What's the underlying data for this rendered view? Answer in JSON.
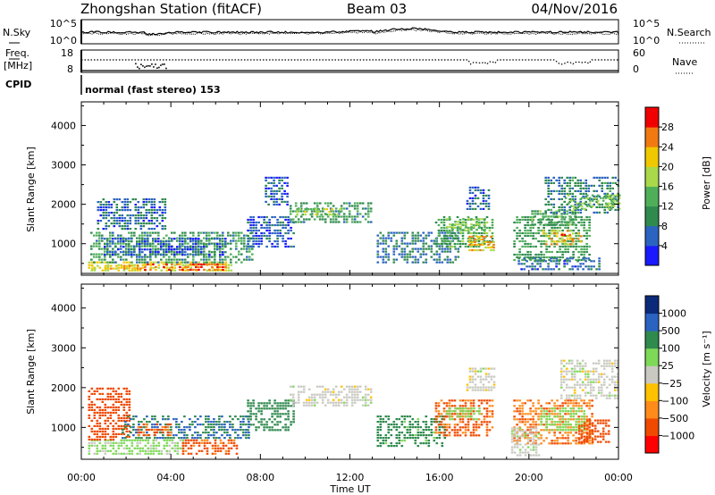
{
  "header": {
    "station": "Zhongshan Station (fitACF)",
    "beam": "Beam 03",
    "date": "04/Nov/2016"
  },
  "noise_panel": {
    "left_label": "N.Sky",
    "right_label": "N.Search",
    "left_ticks": [
      "10^5",
      "10^0"
    ],
    "right_ticks": [
      "10^5",
      "10^0"
    ]
  },
  "freq_panel": {
    "left_label_1": "Freq.",
    "left_label_2": "[MHz]",
    "right_label": "Nave",
    "left_ticks": [
      "18",
      "8"
    ],
    "right_ticks": [
      "60",
      "0"
    ]
  },
  "cpid": {
    "label": "CPID",
    "text": "normal (fast stereo) 153"
  },
  "colors": {
    "power_scale": [
      "#1a1aff",
      "#2b63c0",
      "#2f8a4e",
      "#4faf59",
      "#a9d84a",
      "#f0c800",
      "#f07a10",
      "#f00000"
    ],
    "velocity_scale": [
      "#ff0000",
      "#f04a00",
      "#ff8c1a",
      "#ffc200",
      "#c9c9c2",
      "#7ed957",
      "#2f8a4e",
      "#2b63c0",
      "#0b2a7a"
    ]
  },
  "chart_data": [
    {
      "type": "heatmap",
      "title": "",
      "xlabel": "",
      "ylabel": "Slant Range [km]",
      "x_ticks": [
        "00:00",
        "04:00",
        "08:00",
        "12:00",
        "16:00",
        "20:00",
        "00:00"
      ],
      "y_ticks": [
        "1000",
        "2000",
        "3000",
        "4000"
      ],
      "xlim": [
        0,
        24
      ],
      "ylim": [
        200,
        4600
      ],
      "colorbar": {
        "label": "Power [dB]",
        "ticks": [
          "28",
          "24",
          "20",
          "16",
          "12",
          "8",
          "4"
        ],
        "range": [
          0,
          32
        ]
      },
      "patches": [
        {
          "t0": 0.3,
          "t1": 6.7,
          "r0": 300,
          "r1": 550,
          "value": 20
        },
        {
          "t0": 2.8,
          "t1": 6.4,
          "r0": 330,
          "r1": 500,
          "value": 27
        },
        {
          "t0": 0.2,
          "t1": 2.6,
          "r0": 340,
          "r1": 460,
          "value": 23
        },
        {
          "t0": 0.4,
          "t1": 7.6,
          "r0": 500,
          "r1": 1300,
          "value": 11
        },
        {
          "t0": 1.0,
          "t1": 6.5,
          "r0": 700,
          "r1": 1150,
          "value": 6
        },
        {
          "t0": 0.7,
          "t1": 3.7,
          "r0": 1350,
          "r1": 2150,
          "value": 7
        },
        {
          "t0": 7.4,
          "t1": 9.5,
          "r0": 900,
          "r1": 1700,
          "value": 6
        },
        {
          "t0": 9.3,
          "t1": 13.0,
          "r0": 1550,
          "r1": 2050,
          "value": 11
        },
        {
          "t0": 9.6,
          "t1": 11.6,
          "r0": 1700,
          "r1": 1900,
          "value": 17
        },
        {
          "t0": 8.2,
          "t1": 9.2,
          "r0": 2000,
          "r1": 2700,
          "value": 6
        },
        {
          "t0": 13.2,
          "t1": 16.8,
          "r0": 500,
          "r1": 1300,
          "value": 8
        },
        {
          "t0": 15.8,
          "t1": 18.4,
          "r0": 900,
          "r1": 1700,
          "value": 13
        },
        {
          "t0": 16.3,
          "t1": 18.0,
          "r0": 1250,
          "r1": 1650,
          "value": 16
        },
        {
          "t0": 17.3,
          "t1": 18.4,
          "r0": 800,
          "r1": 1200,
          "value": 23
        },
        {
          "t0": 17.2,
          "t1": 18.2,
          "r0": 1900,
          "r1": 2450,
          "value": 7
        },
        {
          "t0": 19.3,
          "t1": 22.7,
          "r0": 600,
          "r1": 1700,
          "value": 12
        },
        {
          "t0": 20.6,
          "t1": 22.3,
          "r0": 1000,
          "r1": 1350,
          "value": 21
        },
        {
          "t0": 21.3,
          "t1": 22.0,
          "r0": 1050,
          "r1": 1250,
          "value": 27
        },
        {
          "t0": 20.1,
          "t1": 22.1,
          "r0": 1500,
          "r1": 1850,
          "value": 13
        },
        {
          "t0": 20.7,
          "t1": 24.0,
          "r0": 1750,
          "r1": 2700,
          "value": 9
        },
        {
          "t0": 21.6,
          "t1": 24.0,
          "r0": 1850,
          "r1": 2250,
          "value": 16
        },
        {
          "t0": 19.5,
          "t1": 23.2,
          "r0": 350,
          "r1": 650,
          "value": 7
        }
      ]
    },
    {
      "type": "heatmap",
      "title": "",
      "xlabel": "Time UT",
      "ylabel": "Slant Range [km]",
      "x_ticks": [
        "00:00",
        "04:00",
        "08:00",
        "12:00",
        "16:00",
        "20:00",
        "00:00"
      ],
      "y_ticks": [
        "1000",
        "2000",
        "3000",
        "4000"
      ],
      "xlim": [
        0,
        24
      ],
      "ylim": [
        200,
        4600
      ],
      "colorbar": {
        "label": "Velocity [m s⁻¹]",
        "ticks": [
          "1000",
          "500",
          "100",
          "25",
          "−25",
          "−100",
          "−500",
          "−1000"
        ],
        "range": [
          -1000,
          1000
        ]
      },
      "patches": [
        {
          "t0": 0.3,
          "t1": 4.5,
          "r0": 300,
          "r1": 700,
          "value": 40
        },
        {
          "t0": 4.5,
          "t1": 7.0,
          "r0": 300,
          "r1": 700,
          "value": -140
        },
        {
          "t0": 0.3,
          "t1": 2.2,
          "r0": 700,
          "r1": 2000,
          "value": -200
        },
        {
          "t0": 1.8,
          "t1": 7.5,
          "r0": 700,
          "r1": 1300,
          "value": 300
        },
        {
          "t0": 2.5,
          "t1": 4.0,
          "r0": 800,
          "r1": 1100,
          "value": -120
        },
        {
          "t0": 7.4,
          "t1": 9.5,
          "r0": 900,
          "r1": 1700,
          "value": 200
        },
        {
          "t0": 9.3,
          "t1": 13.0,
          "r0": 1550,
          "r1": 2050,
          "value": 0
        },
        {
          "t0": 13.2,
          "t1": 16.2,
          "r0": 500,
          "r1": 1300,
          "value": 150
        },
        {
          "t0": 15.8,
          "t1": 18.4,
          "r0": 800,
          "r1": 1700,
          "value": -120
        },
        {
          "t0": 16.3,
          "t1": 17.8,
          "r0": 1200,
          "r1": 1500,
          "value": 60
        },
        {
          "t0": 17.2,
          "t1": 18.4,
          "r0": 1900,
          "r1": 2500,
          "value": 0
        },
        {
          "t0": 19.3,
          "t1": 22.8,
          "r0": 600,
          "r1": 1700,
          "value": -90
        },
        {
          "t0": 20.5,
          "t1": 22.5,
          "r0": 900,
          "r1": 1500,
          "value": 60
        },
        {
          "t0": 21.4,
          "t1": 24.0,
          "r0": 1700,
          "r1": 2700,
          "value": 0
        },
        {
          "t0": 22.2,
          "t1": 23.6,
          "r0": 600,
          "r1": 1200,
          "value": -200
        },
        {
          "t0": 19.2,
          "t1": 20.4,
          "r0": 300,
          "r1": 1000,
          "value": 5
        }
      ]
    }
  ]
}
